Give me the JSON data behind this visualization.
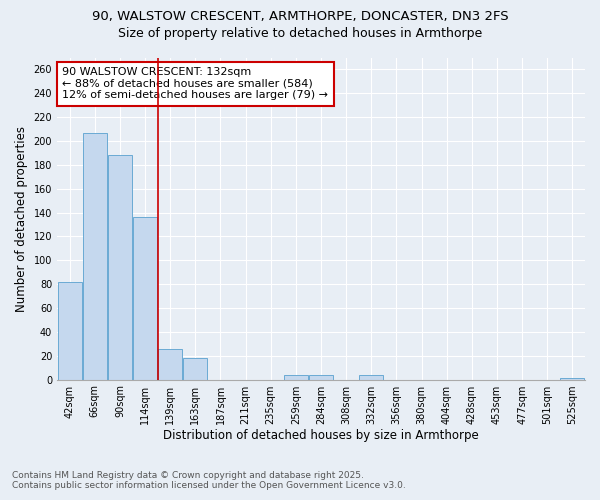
{
  "title_line1": "90, WALSTOW CRESCENT, ARMTHORPE, DONCASTER, DN3 2FS",
  "title_line2": "Size of property relative to detached houses in Armthorpe",
  "xlabel": "Distribution of detached houses by size in Armthorpe",
  "ylabel": "Number of detached properties",
  "footnote1": "Contains HM Land Registry data © Crown copyright and database right 2025.",
  "footnote2": "Contains public sector information licensed under the Open Government Licence v3.0.",
  "bar_labels": [
    "42sqm",
    "66sqm",
    "90sqm",
    "114sqm",
    "139sqm",
    "163sqm",
    "187sqm",
    "211sqm",
    "235sqm",
    "259sqm",
    "284sqm",
    "308sqm",
    "332sqm",
    "356sqm",
    "380sqm",
    "404sqm",
    "428sqm",
    "453sqm",
    "477sqm",
    "501sqm",
    "525sqm"
  ],
  "bar_values": [
    82,
    207,
    188,
    136,
    26,
    18,
    0,
    0,
    0,
    4,
    4,
    0,
    4,
    0,
    0,
    0,
    0,
    0,
    0,
    0,
    1
  ],
  "bar_color": "#c5d8ee",
  "bar_edge_color": "#6aaad4",
  "property_label": "90 WALSTOW CRESCENT: 132sqm",
  "annotation_line1": "← 88% of detached houses are smaller (584)",
  "annotation_line2": "12% of semi-detached houses are larger (79) →",
  "vline_color": "#cc0000",
  "annotation_box_color": "#cc0000",
  "vline_x_index": 3.72,
  "ylim": [
    0,
    270
  ],
  "yticks": [
    0,
    20,
    40,
    60,
    80,
    100,
    120,
    140,
    160,
    180,
    200,
    220,
    240,
    260
  ],
  "background_color": "#e8eef5",
  "plot_bg_color": "#e8eef5",
  "grid_color": "#ffffff",
  "title_fontsize": 9.5,
  "axis_label_fontsize": 8.5,
  "tick_fontsize": 7,
  "annotation_fontsize": 8,
  "footnote_fontsize": 6.5
}
